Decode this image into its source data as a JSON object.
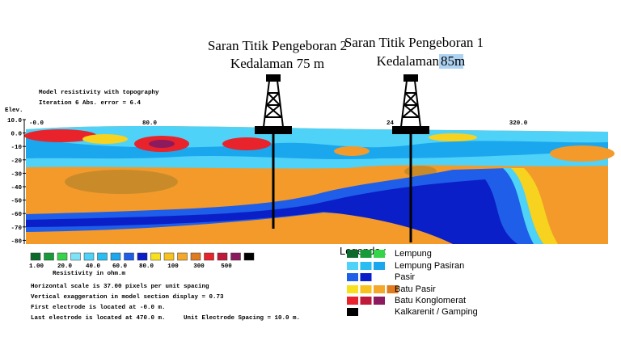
{
  "annotations": [
    {
      "title": "Saran Titik Pengeboran 2",
      "depth_label": "Kedalaman 75 m"
    },
    {
      "title": "Saran Titik Pengeboran 1",
      "depth_label": "Kedalaman",
      "depth_value": "85m"
    }
  ],
  "section": {
    "title": "Model resistivity with topography",
    "iteration": "Iteration 6 Abs. error = 6.4",
    "y_axis_label": "Elev.",
    "x_ticks": [
      "-0.0",
      "80.0",
      "24",
      "320.0"
    ],
    "y_ticks": [
      "10.0",
      "0.0",
      "-10",
      "-20",
      "-30",
      "-40",
      "-50",
      "-60",
      "-70",
      "-80"
    ]
  },
  "color_scale": {
    "labels": [
      "1.00",
      "20.0",
      "40.0",
      "60.0",
      "80.0",
      "100",
      "300",
      "500"
    ],
    "caption": "Resistivity in ohm.m"
  },
  "notes": [
    "Horizontal scale is 37.00 pixels per unit spacing",
    "Vertical exaggeration in model section display = 0.73",
    "First electrode is located at -0.0 m.",
    "Last electrode is located at 470.0 m.     Unit Electrode Spacing = 10.0 m."
  ],
  "legend": {
    "title": "Legenda :",
    "items": [
      "Lempung",
      "Lempung Pasiran",
      "Pasir",
      "Batu Pasir",
      "Batu Konglomerat",
      "Kalkarenit / Gamping"
    ]
  }
}
